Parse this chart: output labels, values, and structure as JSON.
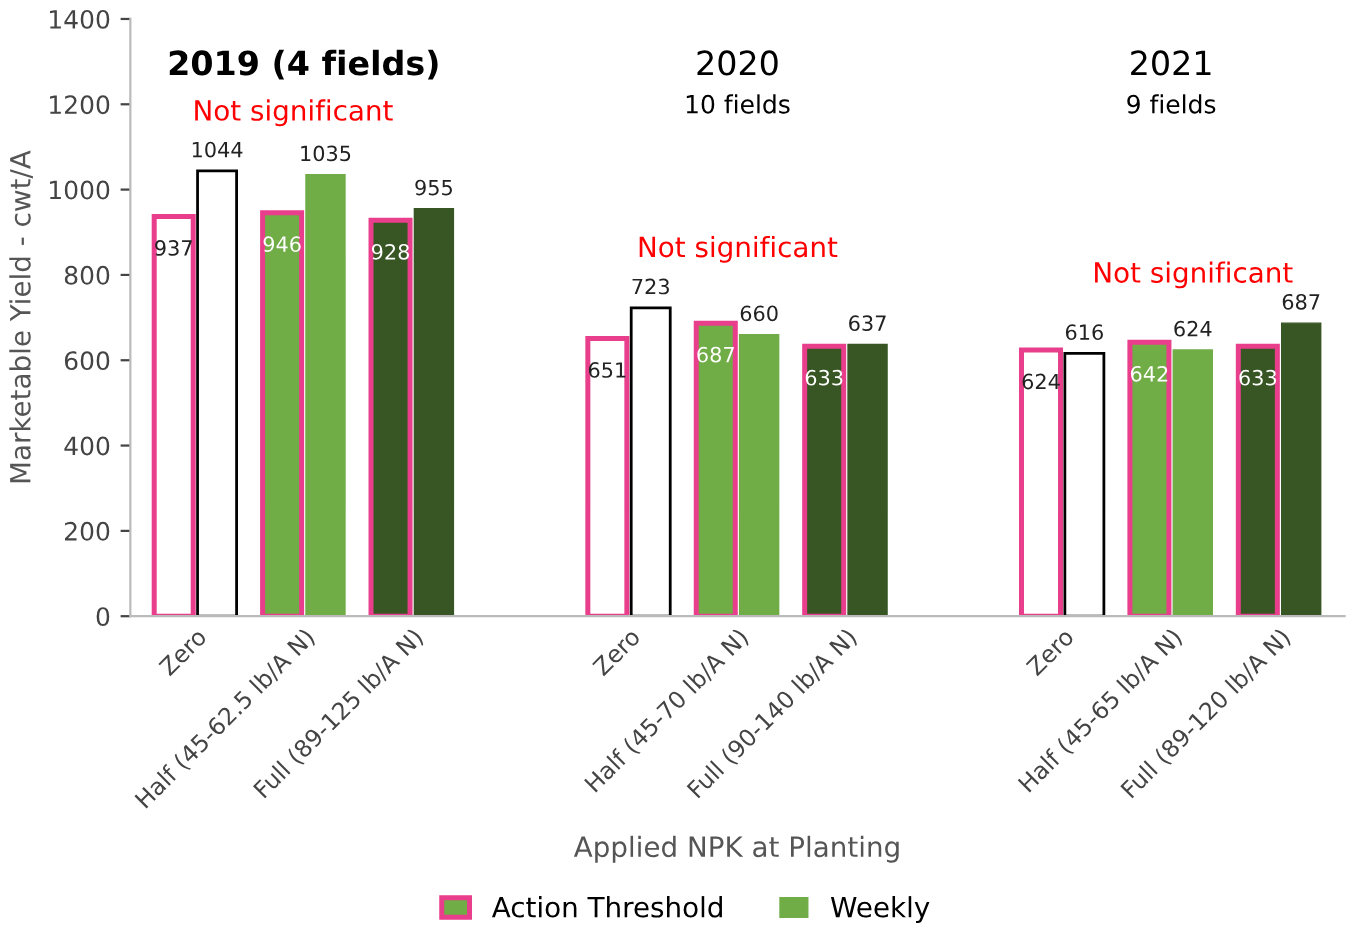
{
  "chart_data": {
    "type": "bar",
    "categories": [
      "Zero",
      "Half (45-62.5 lb/A N)",
      "Full (89-125 lb/A N)",
      null,
      "Zero",
      "Half (45-70 lb/A N)",
      "Full (90-140 lb/A N)",
      null,
      "Zero",
      "Half (45-65 lb/A N)",
      "Full (89-120 lb/A N)"
    ],
    "series": [
      {
        "name": "Action Threshold",
        "color": "#e83e8c",
        "colors": [
          "#ffffff",
          "#70ad47",
          "#375623",
          null,
          "#ffffff",
          "#70ad47",
          "#375623",
          null,
          "#ffffff",
          "#70ad47",
          "#375623"
        ],
        "values": [
          937,
          946,
          928,
          null,
          651,
          687,
          633,
          null,
          624,
          642,
          633
        ]
      },
      {
        "name": "Weekly",
        "color": "#70ad47",
        "colors": [
          "#ffffff",
          "#70ad47",
          "#375623",
          null,
          "#ffffff",
          "#70ad47",
          "#375623",
          null,
          "#ffffff",
          "#70ad47",
          "#375623"
        ],
        "values": [
          1044,
          1035,
          955,
          null,
          723,
          660,
          637,
          null,
          616,
          624,
          687
        ]
      }
    ],
    "ylim": [
      0,
      1400
    ],
    "yticks": [
      0,
      200,
      400,
      600,
      800,
      1000,
      1200,
      1400
    ],
    "ylabel": "Marketable Yield - cwt/A",
    "xlabel": "Applied NPK at Planting",
    "annotations": [
      "2019 (4 fields)",
      "Not significant",
      "2020",
      "10 fields",
      "Not significant",
      "2021",
      "9 fields",
      "Not significant"
    ],
    "data_labels": true,
    "grid": false,
    "legend": "bottom"
  }
}
